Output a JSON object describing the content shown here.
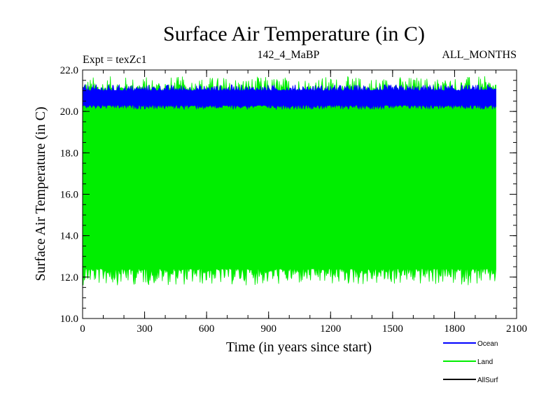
{
  "chart_data": {
    "type": "line",
    "title": "Surface Air Temperature (in C)",
    "subtitle_left": "Expt = texZc1",
    "subtitle_center": "142_4_MaBP",
    "subtitle_right": "ALL_MONTHS",
    "xlabel": "Time (in years since start)",
    "ylabel": "Surface Air Temperature (in C)",
    "xlim": [
      0,
      2100
    ],
    "ylim": [
      10.0,
      22.0
    ],
    "x_ticks": [
      0,
      300,
      600,
      900,
      1200,
      1500,
      1800,
      2100
    ],
    "x_tick_labels": [
      "0",
      "300",
      "600",
      "900",
      "1200",
      "1500",
      "1800",
      "2100"
    ],
    "y_ticks": [
      10.0,
      12.0,
      14.0,
      16.0,
      18.0,
      20.0,
      22.0
    ],
    "y_tick_labels": [
      "10.0",
      "12.0",
      "14.0",
      "16.0",
      "18.0",
      "20.0",
      "22.0"
    ],
    "x_range": [
      0,
      2000
    ],
    "series": [
      {
        "name": "Land",
        "color": "#00ee00",
        "style": "band",
        "low": 12.4,
        "high": 20.9,
        "low_min": 11.6,
        "high_max": 21.7
      },
      {
        "name": "Ocean",
        "color": "#0000ff",
        "style": "band",
        "low": 20.3,
        "high": 21.0,
        "low_min": 20.1,
        "high_max": 21.3
      },
      {
        "name": "AllSurf",
        "color": "#000000",
        "style": "line",
        "values": []
      }
    ],
    "legend": [
      {
        "name": "Ocean",
        "color": "#0000ff"
      },
      {
        "name": "Land",
        "color": "#00ee00"
      },
      {
        "name": "AllSurf",
        "color": "#000000"
      }
    ],
    "legend_position": "bottom-right"
  }
}
